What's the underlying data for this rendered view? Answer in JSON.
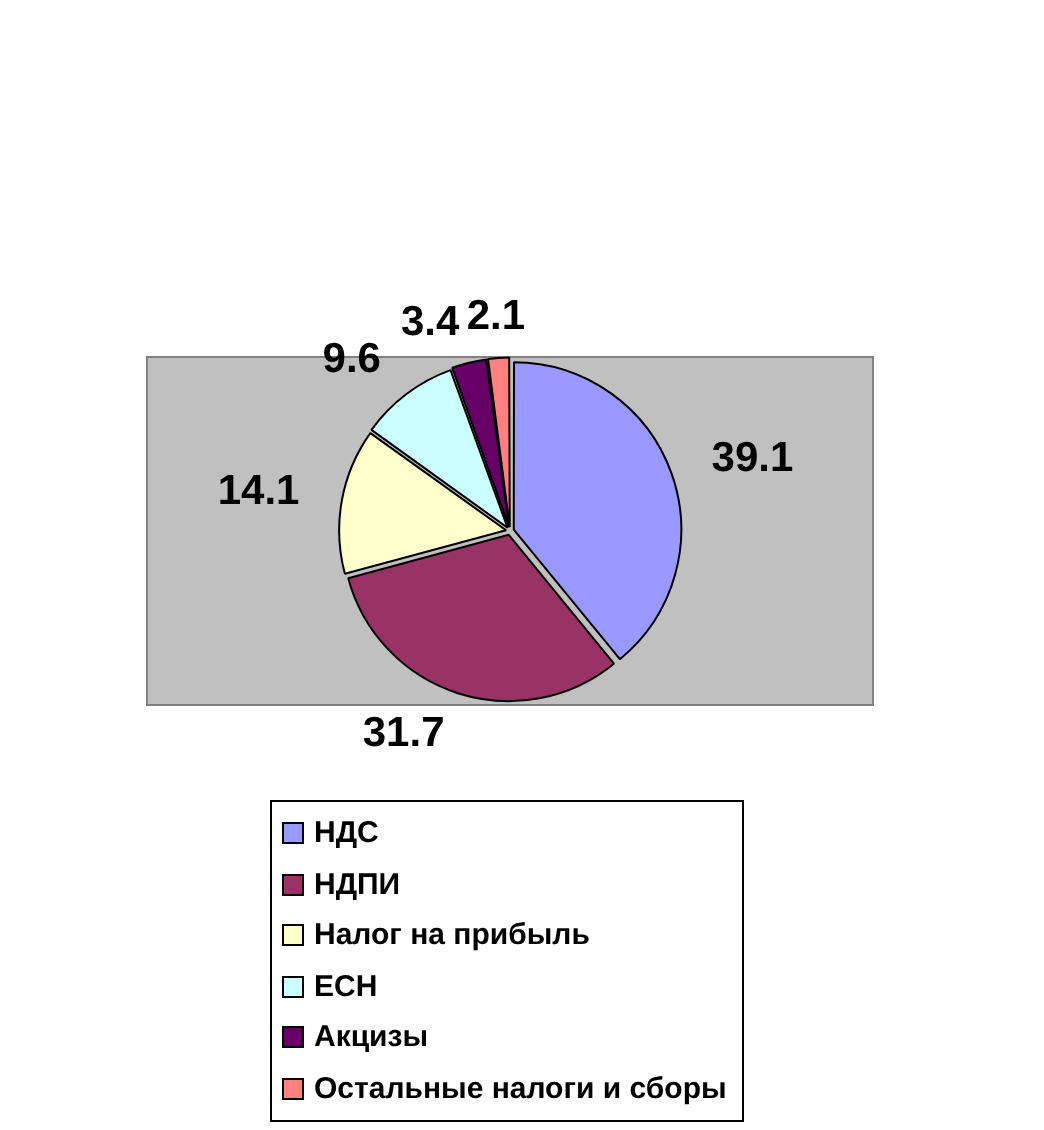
{
  "chart_data": {
    "type": "pie",
    "categories": [
      "НДС",
      "НДПИ",
      "Налог на прибыль",
      "ЕСН",
      "Акцизы",
      "Остальные налоги и сборы"
    ],
    "values": [
      39.1,
      31.7,
      14.1,
      9.6,
      3.4,
      2.1
    ],
    "colors": [
      "#9999ff",
      "#993366",
      "#ffffcc",
      "#ccffff",
      "#660066",
      "#ff8080"
    ],
    "data_labels": true,
    "legend": "bottom"
  }
}
